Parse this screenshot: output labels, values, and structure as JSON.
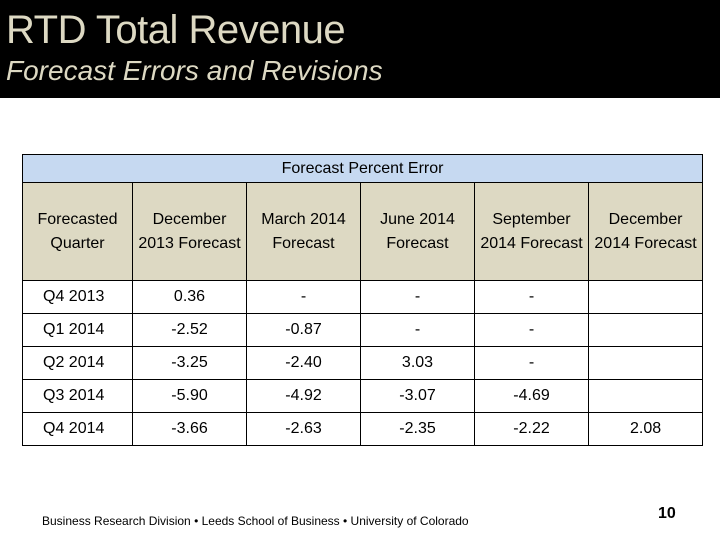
{
  "slide": {
    "title": "RTD Total Revenue",
    "subtitle": "Forecast Errors and Revisions",
    "footer": "Business Research Division • Leeds School of Business • University of Colorado",
    "page_number": "10"
  },
  "table": {
    "group_header": "Forecast Percent Error",
    "columns": [
      "Forecasted Quarter",
      "December 2013 Forecast",
      "March 2014 Forecast",
      "June 2014 Forecast",
      "September 2014 Forecast",
      "December 2014 Forecast"
    ],
    "rows": [
      [
        "Q4 2013",
        "0.36",
        "-",
        "-",
        "-",
        ""
      ],
      [
        "Q1 2014",
        "-2.52",
        "-0.87",
        "-",
        "-",
        ""
      ],
      [
        "Q2 2014",
        "-3.25",
        "-2.40",
        "3.03",
        "-",
        ""
      ],
      [
        "Q3 2014",
        "-5.90",
        "-4.92",
        "-3.07",
        "-4.69",
        ""
      ],
      [
        "Q4 2014",
        "-3.66",
        "-2.63",
        "-2.35",
        "-2.22",
        "2.08"
      ]
    ]
  },
  "colors": {
    "header_bar": "#000000",
    "title_text": "#ddd9c3",
    "group_header_fill": "#c6d9f1",
    "column_header_fill": "#ddd9c3"
  }
}
